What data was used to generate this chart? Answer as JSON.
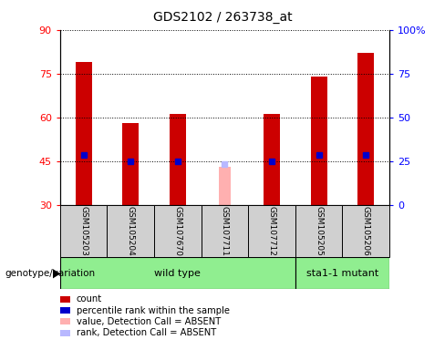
{
  "title": "GDS2102 / 263738_at",
  "samples": [
    "GSM105203",
    "GSM105204",
    "GSM107670",
    "GSM107711",
    "GSM107712",
    "GSM105205",
    "GSM105206"
  ],
  "count_values": [
    79,
    58,
    61,
    null,
    61,
    74,
    82
  ],
  "percentile_values": [
    47,
    45,
    45,
    null,
    45,
    47,
    47
  ],
  "absent_value": [
    null,
    null,
    null,
    43,
    null,
    null,
    null
  ],
  "absent_rank": [
    null,
    null,
    null,
    44,
    null,
    null,
    null
  ],
  "ylim_left": [
    30,
    90
  ],
  "ylim_right": [
    0,
    100
  ],
  "yticks_left": [
    30,
    45,
    60,
    75,
    90
  ],
  "yticks_right": [
    0,
    25,
    50,
    75,
    100
  ],
  "ytick_labels_right": [
    "0",
    "25",
    "50",
    "75",
    "100%"
  ],
  "bar_color": "#cc0000",
  "percentile_color": "#0000cc",
  "absent_bar_color": "#ffb0b0",
  "absent_rank_color": "#b8b8ff",
  "plot_bg": "#ffffff",
  "sample_box_color": "#d0d0d0",
  "wild_type_label": "wild type",
  "mutant_label": "sta1-1 mutant",
  "genotype_label": "genotype/variation",
  "wild_type_count": 5,
  "legend_items": [
    {
      "label": "count",
      "color": "#cc0000"
    },
    {
      "label": "percentile rank within the sample",
      "color": "#0000cc"
    },
    {
      "label": "value, Detection Call = ABSENT",
      "color": "#ffb0b0"
    },
    {
      "label": "rank, Detection Call = ABSENT",
      "color": "#b8b8ff"
    }
  ],
  "bar_width": 0.35
}
